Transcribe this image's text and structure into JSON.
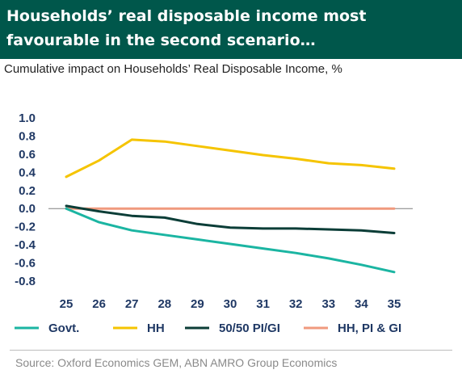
{
  "header": {
    "title": "Households’ real disposable income most favourable in the second scenario…",
    "bg_color": "#00574B"
  },
  "subtitle": "Cumulative impact on Households’ Real Disposable Income, %",
  "source": "Source: Oxford Economics GEM, ABN AMRO Group Economics",
  "chart_data": {
    "type": "line",
    "title": "",
    "xlabel": "",
    "ylabel": "",
    "categories": [
      "25",
      "26",
      "27",
      "28",
      "29",
      "30",
      "31",
      "32",
      "33",
      "34",
      "35"
    ],
    "ylim": [
      -0.8,
      1.0
    ],
    "yticks": [
      "1.0",
      "0.8",
      "0.6",
      "0.4",
      "0.2",
      "0.0",
      "-0.2",
      "-0.4",
      "-0.6",
      "-0.8"
    ],
    "grid": false,
    "legend_position": "bottom",
    "series": [
      {
        "name": "Govt.",
        "color": "#1BB5A2",
        "values": [
          0.0,
          -0.15,
          -0.24,
          -0.29,
          -0.34,
          -0.39,
          -0.44,
          -0.49,
          -0.55,
          -0.62,
          -0.7
        ]
      },
      {
        "name": "HH",
        "color": "#F5C400",
        "values": [
          0.35,
          0.53,
          0.76,
          0.74,
          0.69,
          0.64,
          0.59,
          0.55,
          0.5,
          0.48,
          0.44
        ]
      },
      {
        "name": "50/50 PI/GI",
        "color": "#0B3D37",
        "values": [
          0.03,
          -0.03,
          -0.08,
          -0.1,
          -0.17,
          -0.21,
          -0.22,
          -0.22,
          -0.23,
          -0.24,
          -0.27
        ]
      },
      {
        "name": "HH, PI & GI",
        "color": "#F09A7E",
        "values": [
          0.0,
          0.0,
          0.0,
          0.0,
          0.0,
          0.0,
          0.0,
          0.0,
          0.0,
          0.0,
          0.0
        ]
      }
    ]
  }
}
